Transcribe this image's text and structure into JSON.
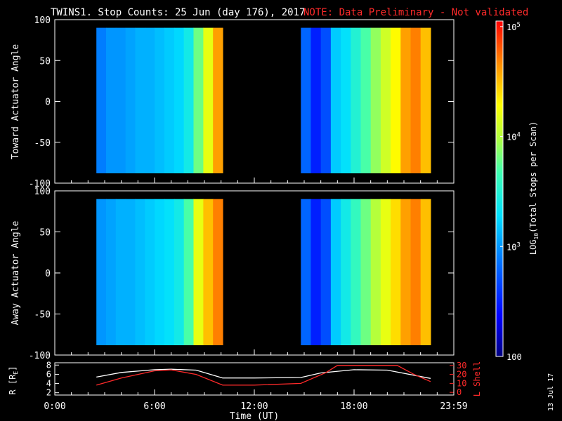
{
  "title": "TWINS1. Stop Counts: 25 Jun (day 176), 2017",
  "note": "NOTE: Data Preliminary - Not validated",
  "date_stamp": "13 Jul 17",
  "colors": {
    "note": "#ff2a2a",
    "l_shell": "#ff2a2a",
    "r_line": "#ffffff"
  },
  "chart_data": [
    {
      "type": "heatmap",
      "ylabel": "Toward Actuator Angle",
      "ylim": [
        -100,
        100
      ],
      "yticks": [
        "100",
        "50",
        "0",
        "-50",
        "-100"
      ],
      "blocks": [
        {
          "x_start_hr": 2.5,
          "x_end_hr": 10.1,
          "y_range": [
            -88,
            90
          ],
          "levels": [
            2.9,
            3.0,
            3.0,
            3.05,
            3.1,
            3.1,
            3.15,
            3.2,
            3.25,
            3.4,
            3.8,
            4.2,
            4.6
          ]
        },
        {
          "x_start_hr": 14.8,
          "x_end_hr": 22.6,
          "y_range": [
            -88,
            90
          ],
          "levels": [
            2.8,
            2.5,
            2.7,
            3.2,
            3.3,
            3.5,
            3.7,
            3.9,
            4.1,
            4.3,
            4.6,
            4.7,
            4.5
          ]
        }
      ]
    },
    {
      "type": "heatmap",
      "ylabel": "Away Actuator Angle",
      "ylim": [
        -100,
        100
      ],
      "yticks": [
        "100",
        "50",
        "0",
        "-50",
        "-100"
      ],
      "blocks": [
        {
          "x_start_hr": 2.5,
          "x_end_hr": 10.1,
          "y_range": [
            -88,
            90
          ],
          "levels": [
            3.0,
            3.05,
            3.1,
            3.1,
            3.15,
            3.2,
            3.25,
            3.3,
            3.4,
            3.7,
            4.2,
            4.5,
            4.7
          ]
        },
        {
          "x_start_hr": 14.8,
          "x_end_hr": 22.6,
          "y_range": [
            -88,
            90
          ],
          "levels": [
            2.8,
            2.5,
            2.7,
            3.2,
            3.4,
            3.6,
            3.8,
            4.0,
            4.2,
            4.4,
            4.6,
            4.7,
            4.5
          ]
        }
      ]
    },
    {
      "type": "line",
      "ylabel": "R [R",
      "ylabel_sub": "E",
      "ylabel_close": "]",
      "ylabel_right": "L Shell",
      "yticks_left": [
        "8",
        "6",
        "4",
        "2"
      ],
      "yticks_right": [
        "30",
        "20",
        "10",
        "0"
      ],
      "xlabel": "Time (UT)",
      "xticks": [
        "0:00",
        "6:00",
        "12:00",
        "18:00",
        "23:59"
      ],
      "series": [
        {
          "axis": "left",
          "x": [
            2.5,
            4,
            6,
            7,
            8.5,
            10.1,
            12,
            14.8,
            16,
            18,
            20,
            22.6
          ],
          "y": [
            5.4,
            6.4,
            7.0,
            7.1,
            6.9,
            5.2,
            5.2,
            5.3,
            6.3,
            7.0,
            6.9,
            5.1
          ]
        },
        {
          "axis": "right",
          "x": [
            2.5,
            4,
            6,
            7,
            8.5,
            10.1,
            12,
            14.8,
            16.3,
            17.0,
            20.6,
            21.6,
            22.6
          ],
          "y": [
            8,
            16,
            24,
            25,
            20,
            8,
            8,
            10,
            22,
            30,
            30,
            20,
            12
          ]
        }
      ]
    }
  ],
  "colorbar": {
    "label_prefix": "LOG",
    "label_sub": "10",
    "label_suffix": "(Total Stops per Scan)",
    "ticks": [
      {
        "base": "10",
        "exp": "5",
        "value": 5
      },
      {
        "base": "10",
        "exp": "4",
        "value": 4
      },
      {
        "base": "10",
        "exp": "3",
        "value": 3
      },
      {
        "base": "100",
        "exp": "",
        "value": 2
      }
    ],
    "range": [
      2,
      5.05
    ]
  }
}
